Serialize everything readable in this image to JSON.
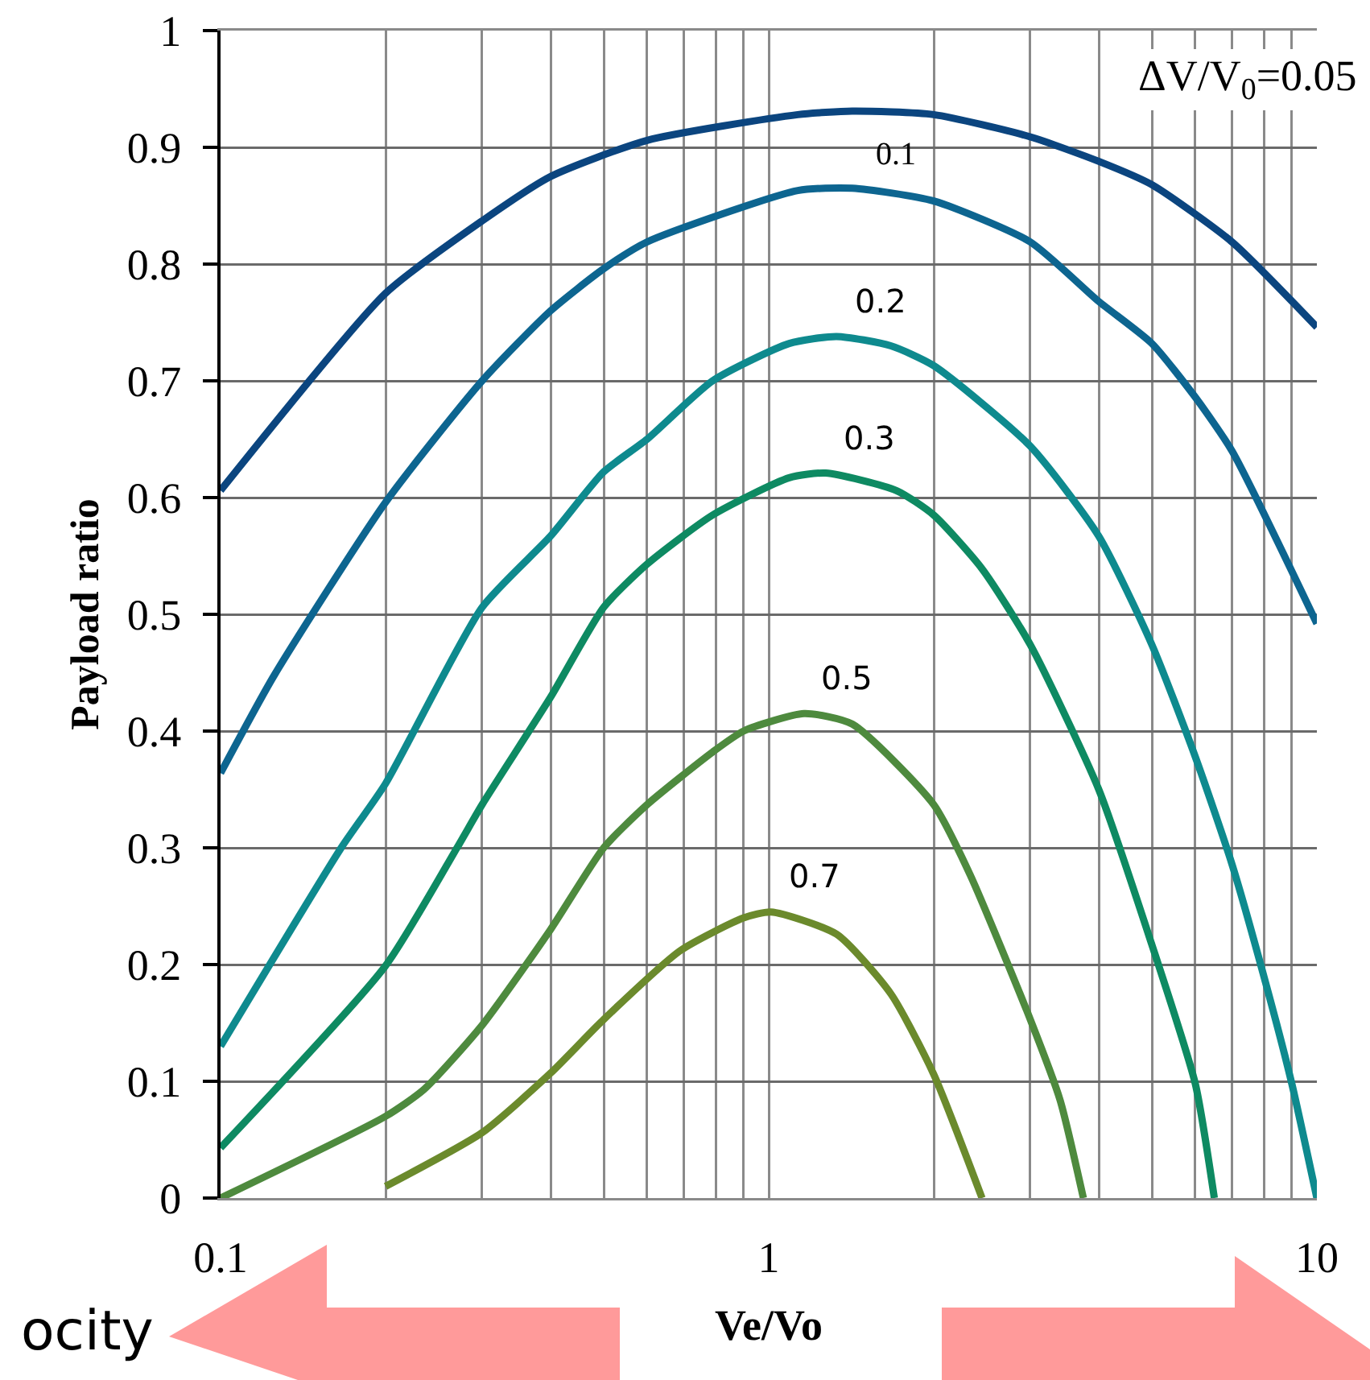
{
  "chart_data": {
    "type": "line",
    "xlabel": "Ve/Vo",
    "ylabel": "Payload ratio",
    "log": "x",
    "grid": true,
    "legend": false,
    "marker": "none",
    "line_style": "solid",
    "xlim": [
      0.1,
      10
    ],
    "xticks": [
      0.1,
      {
        "value": 0.2,
        "label": null
      },
      {
        "value": 0.3,
        "label": null
      },
      {
        "value": 0.4,
        "label": null
      },
      {
        "value": 0.5,
        "label": null
      },
      {
        "value": 0.6,
        "label": null
      },
      {
        "value": 0.7,
        "label": null
      },
      {
        "value": 0.8,
        "label": null
      },
      {
        "value": 0.9,
        "label": null
      },
      1,
      {
        "value": 2,
        "label": null
      },
      {
        "value": 3,
        "label": null
      },
      {
        "value": 4,
        "label": null
      },
      {
        "value": 5,
        "label": null
      },
      {
        "value": 6,
        "label": null
      },
      {
        "value": 7,
        "label": null
      },
      {
        "value": 8,
        "label": null
      },
      {
        "value": 9,
        "label": null
      },
      10
    ],
    "ylim": [
      0,
      1
    ],
    "yticks": [
      0,
      0.1,
      0.2,
      0.3,
      0.4,
      0.5,
      0.6,
      0.7,
      0.8,
      0.9,
      1
    ],
    "annotations": [
      "ocity"
    ],
    "series": [
      {
        "name": "ΔV/V$_{0}$=0.05",
        "color": "#0b457f",
        "x": [
          0.1,
          0.2,
          0.3,
          0.4,
          0.6,
          1.13,
          1.42,
          2,
          3,
          4,
          5,
          7,
          10
        ],
        "values": [
          0.606,
          0.775,
          0.837,
          0.875,
          0.906,
          0.928,
          0.931,
          0.928,
          0.909,
          0.888,
          0.868,
          0.819,
          0.746
        ]
      },
      {
        "name": "0.1",
        "color": "#0d6590",
        "x": [
          0.1,
          0.125,
          0.2,
          0.3,
          0.4,
          0.5,
          0.6,
          1.13,
          1.42,
          2,
          3,
          4,
          5,
          6,
          7,
          10
        ],
        "values": [
          0.364,
          0.447,
          0.596,
          0.7,
          0.76,
          0.796,
          0.819,
          0.863,
          0.865,
          0.854,
          0.819,
          0.768,
          0.732,
          0.686,
          0.64,
          0.492
        ]
      },
      {
        "name": "0.2",
        "color": "#0e8a8e",
        "x": [
          0.1,
          0.166,
          0.2,
          0.3,
          0.4,
          0.5,
          0.6,
          0.79,
          1.09,
          1.33,
          1.67,
          2,
          3,
          4,
          5,
          6,
          7,
          8.1,
          9,
          10
        ],
        "values": [
          0.13,
          0.3,
          0.355,
          0.506,
          0.567,
          0.622,
          0.65,
          0.7,
          0.732,
          0.738,
          0.73,
          0.713,
          0.644,
          0.567,
          0.474,
          0.378,
          0.286,
          0.181,
          0.098,
          0
        ]
      },
      {
        "name": "0.3",
        "color": "#0e8a62",
        "x": [
          0.1,
          0.2,
          0.27,
          0.3,
          0.4,
          0.5,
          0.6,
          0.79,
          1.09,
          1.27,
          1.71,
          2,
          2.45,
          3,
          4,
          5,
          6,
          6.5
        ],
        "values": [
          0.043,
          0.199,
          0.3,
          0.337,
          0.429,
          0.506,
          0.543,
          0.585,
          0.617,
          0.621,
          0.606,
          0.585,
          0.539,
          0.474,
          0.35,
          0.217,
          0.098,
          0
        ]
      },
      {
        "name": "0.5",
        "color": "#4e8a3e",
        "x": [
          0.1,
          0.2,
          0.235,
          0.3,
          0.4,
          0.5,
          0.6,
          0.79,
          0.9,
          1.16,
          1.42,
          2,
          2.33,
          3,
          3.4,
          3.75
        ],
        "values": [
          0,
          0.07,
          0.093,
          0.148,
          0.23,
          0.3,
          0.337,
          0.382,
          0.4,
          0.415,
          0.406,
          0.337,
          0.277,
          0.153,
          0.084,
          0
        ]
      },
      {
        "name": "0.7",
        "color": "#6b8a2c",
        "x": [
          0.2,
          0.3,
          0.4,
          0.5,
          0.69,
          0.9,
          1.01,
          1.33,
          1.67,
          2,
          2.45
        ],
        "values": [
          0.01,
          0.056,
          0.107,
          0.153,
          0.212,
          0.24,
          0.245,
          0.226,
          0.175,
          0.106,
          0
        ]
      }
    ]
  }
}
